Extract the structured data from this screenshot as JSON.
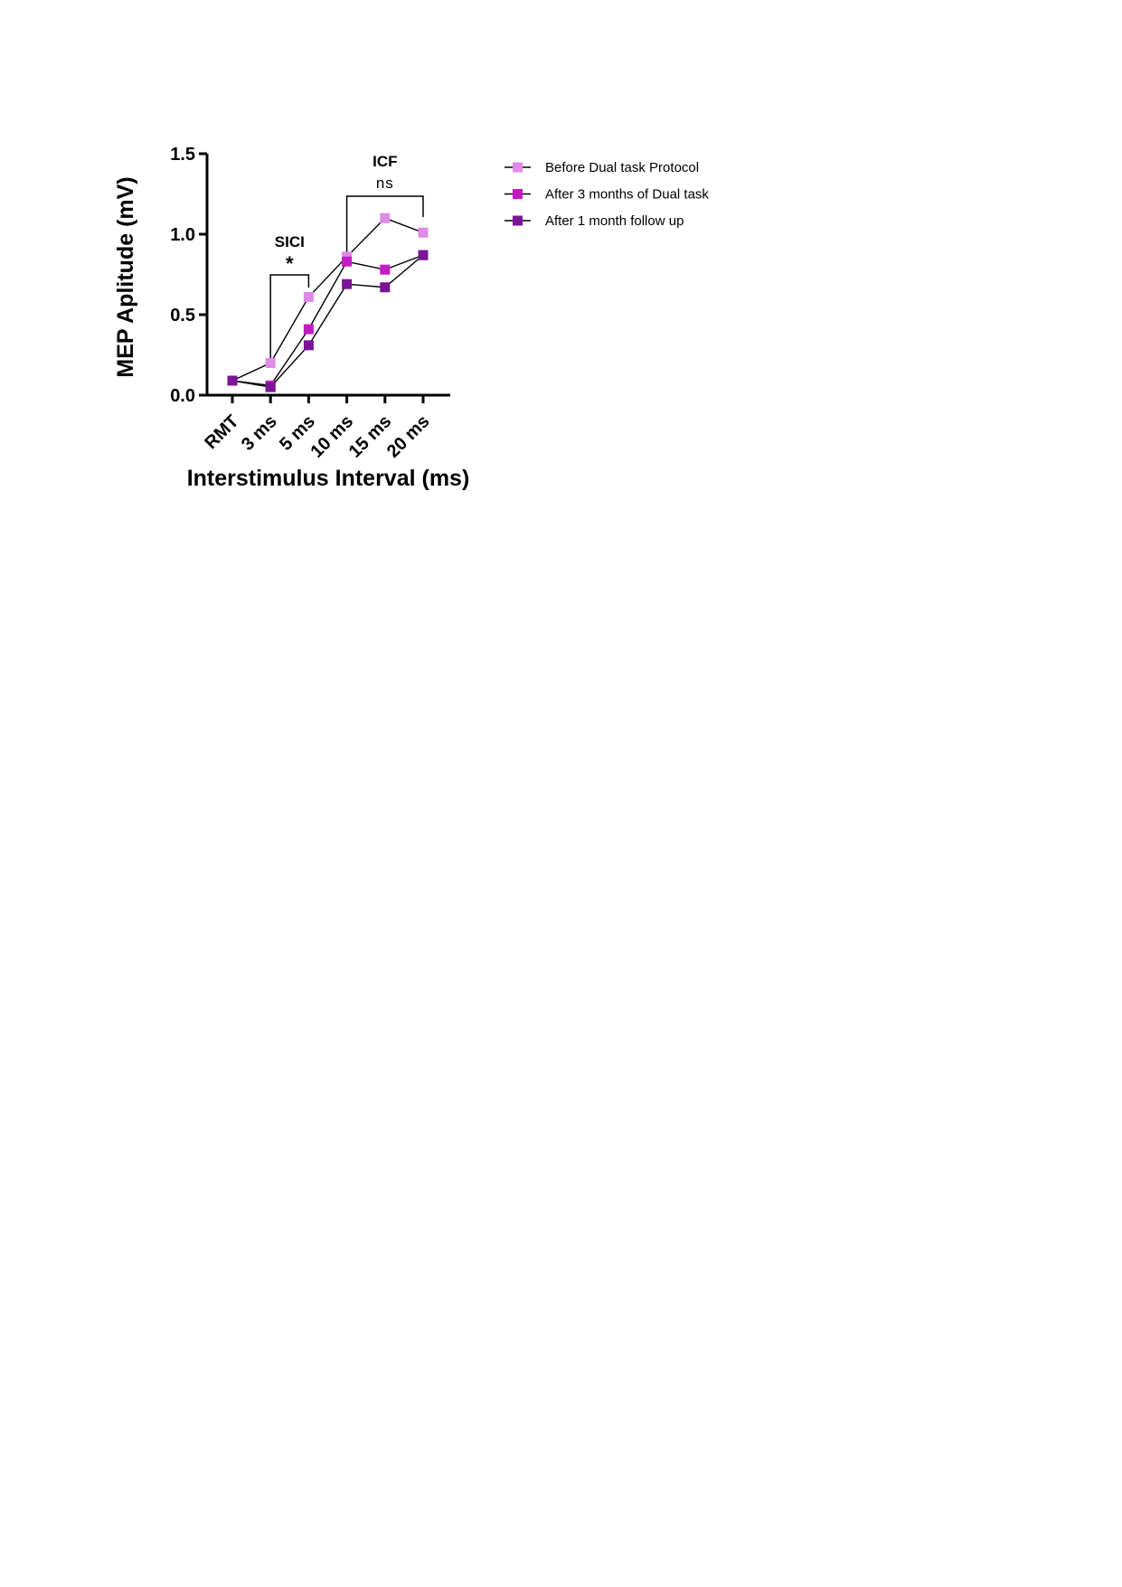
{
  "chart_data": {
    "type": "line",
    "categories": [
      "RMT",
      "3 ms",
      "5 ms",
      "10 ms",
      "15 ms",
      "20 ms"
    ],
    "xlabel": "Interstimulus Interval (ms)",
    "ylabel": "MEP Aplitude (mV)",
    "ylim": [
      0,
      1.5
    ],
    "yticks": [
      "0.0",
      "0.5",
      "1.0",
      "1.5"
    ],
    "ytick_values": [
      0,
      0.5,
      1.0,
      1.5
    ],
    "grid": false,
    "legend_position": "right",
    "marker": "square",
    "series": [
      {
        "name": "Before Dual task Protocol",
        "color": "#e08ae8",
        "values": [
          0.09,
          0.2,
          0.61,
          0.86,
          1.1,
          1.01
        ]
      },
      {
        "name": "After 3 months of Dual task",
        "color": "#c21bc4",
        "values": [
          0.09,
          0.06,
          0.41,
          0.83,
          0.78,
          0.87
        ]
      },
      {
        "name": "After 1 month follow up",
        "color": "#7a1596",
        "values": [
          0.09,
          0.05,
          0.31,
          0.69,
          0.67,
          0.87
        ]
      }
    ],
    "annotations": [
      {
        "label": "SICI",
        "significance": "*",
        "from_category": "3 ms",
        "to_category": "5 ms"
      },
      {
        "label": "ICF",
        "significance": "ns",
        "from_category": "10 ms",
        "to_category": "20 ms"
      }
    ]
  }
}
